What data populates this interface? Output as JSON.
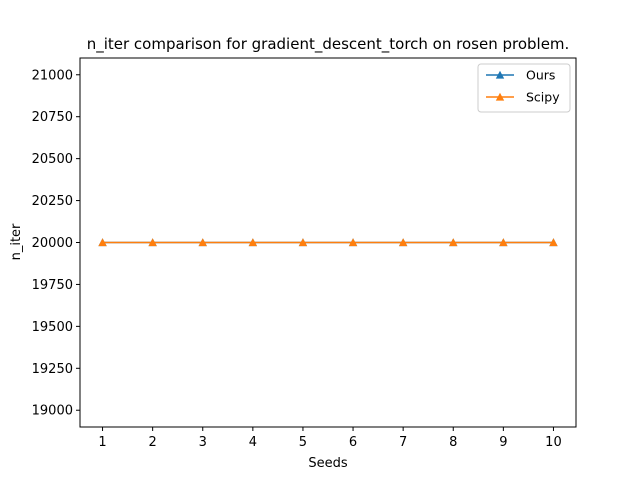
{
  "chart_data": {
    "type": "line",
    "title": "n_iter comparison for gradient_descent_torch on rosen problem.",
    "xlabel": "Seeds",
    "ylabel": "n_iter",
    "x": [
      1,
      2,
      3,
      4,
      5,
      6,
      7,
      8,
      9,
      10
    ],
    "xlim": [
      0.55,
      10.45
    ],
    "ylim": [
      18900,
      21100
    ],
    "yticks": [
      19000,
      19250,
      19500,
      19750,
      20000,
      20250,
      20500,
      20750,
      21000
    ],
    "grid": false,
    "legend_position": "top-right",
    "series": [
      {
        "name": "Ours",
        "color": "#1f77b4",
        "marker": "triangle",
        "values": [
          20000,
          20000,
          20000,
          20000,
          20000,
          20000,
          20000,
          20000,
          20000,
          20000
        ]
      },
      {
        "name": "Scipy",
        "color": "#ff7f0e",
        "marker": "triangle",
        "values": [
          20000,
          20000,
          20000,
          20000,
          20000,
          20000,
          20000,
          20000,
          20000,
          20000
        ]
      }
    ]
  }
}
